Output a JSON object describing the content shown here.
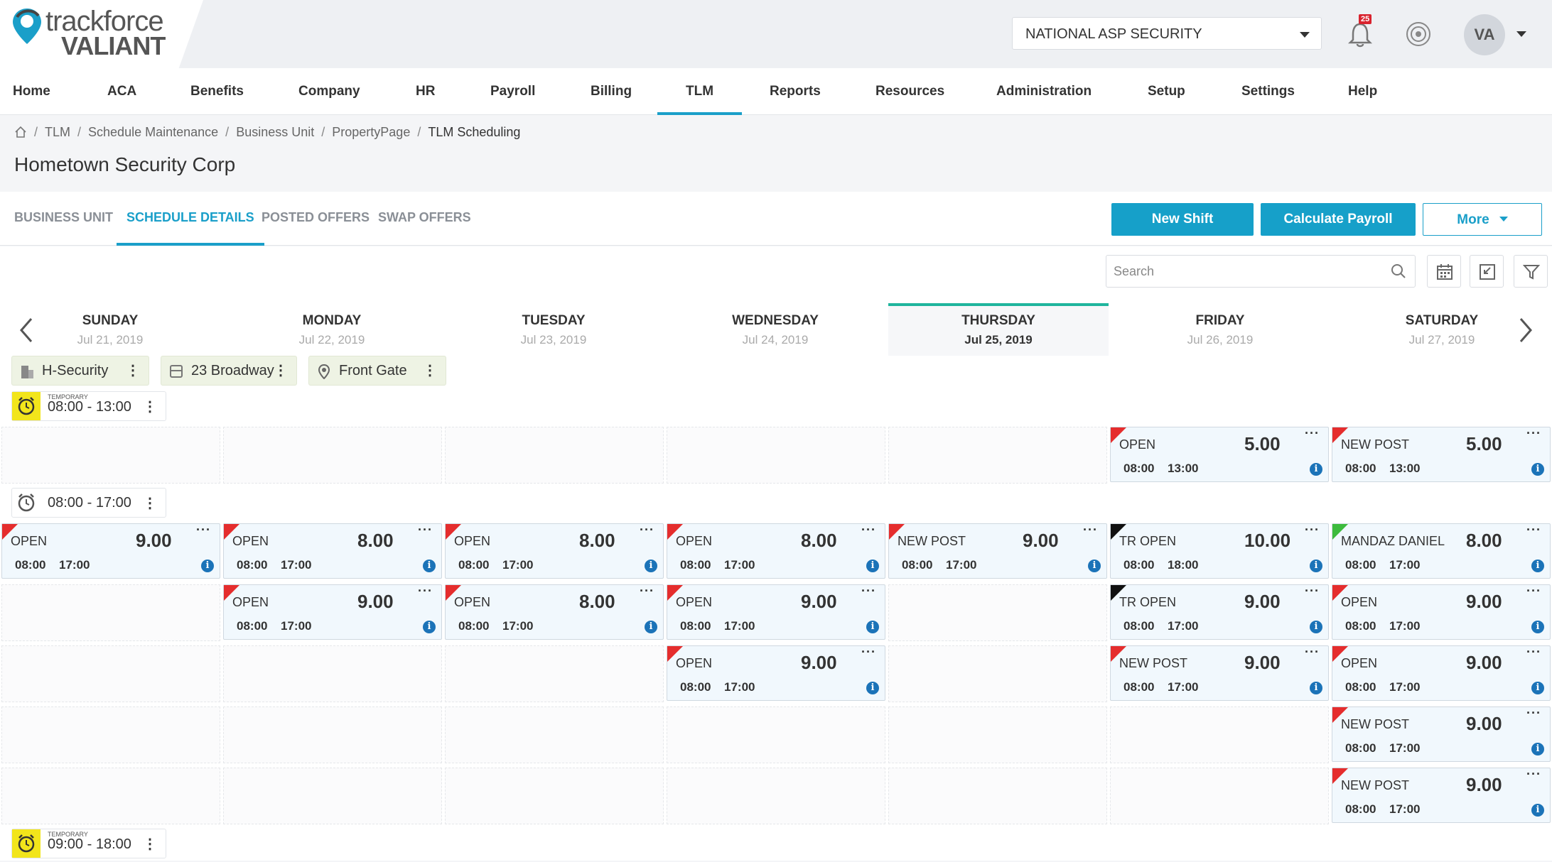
{
  "header": {
    "logo_line1": "trackforce",
    "logo_line2": "VALIANT",
    "company": "NATIONAL ASP SECURITY",
    "notifications": "25",
    "avatar": "VA",
    "accent": "#1a9fc9"
  },
  "nav": [
    "Home",
    "ACA",
    "Benefits",
    "Company",
    "HR",
    "Payroll",
    "Billing",
    "TLM",
    "Reports",
    "Resources",
    "Administration",
    "Setup",
    "Settings",
    "Help"
  ],
  "nav_active": "TLM",
  "breadcrumb": [
    "TLM",
    "Schedule Maintenance",
    "Business Unit",
    "PropertyPage",
    "TLM Scheduling"
  ],
  "page_title": "Hometown Security Corp",
  "tabs": [
    "BUSINESS UNIT",
    "SCHEDULE DETAILS",
    "POSTED OFFERS",
    "SWAP OFFERS"
  ],
  "tab_active": "SCHEDULE DETAILS",
  "actions": {
    "new_shift": "New Shift",
    "calc_payroll": "Calculate Payroll",
    "more": "More"
  },
  "search_placeholder": "Search",
  "days": [
    {
      "name": "SUNDAY",
      "date": "Jul 21, 2019"
    },
    {
      "name": "MONDAY",
      "date": "Jul 22, 2019"
    },
    {
      "name": "TUESDAY",
      "date": "Jul 23, 2019"
    },
    {
      "name": "WEDNESDAY",
      "date": "Jul 24, 2019"
    },
    {
      "name": "THURSDAY",
      "date": "Jul 25, 2019"
    },
    {
      "name": "FRIDAY",
      "date": "Jul 26, 2019"
    },
    {
      "name": "SATURDAY",
      "date": "Jul 27, 2019"
    }
  ],
  "today": "THURSDAY",
  "chips": [
    "H-Security",
    "23 Broadway",
    "Front Gate"
  ],
  "timeslots": [
    {
      "label": "TEMPORARY",
      "time": "08:00 - 13:00",
      "temporary": true
    },
    {
      "label": "",
      "time": "08:00 - 17:00",
      "temporary": false
    },
    {
      "label": "TEMPORARY",
      "time": "09:00 - 18:00",
      "temporary": true
    }
  ],
  "shift_colors": {
    "red": "#e52d2d",
    "black": "#111111",
    "green": "#3dbb3d"
  },
  "shifts_0800_1300": [
    {
      "day": 5,
      "row": 0,
      "name": "OPEN",
      "hours": "5.00",
      "start": "08:00",
      "end": "13:00",
      "flag": "red"
    },
    {
      "day": 6,
      "row": 0,
      "name": "NEW POST",
      "hours": "5.00",
      "start": "08:00",
      "end": "13:00",
      "flag": "red"
    }
  ],
  "shifts_0800_1700": [
    {
      "day": 0,
      "row": 0,
      "name": "OPEN",
      "hours": "9.00",
      "start": "08:00",
      "end": "17:00",
      "flag": "red"
    },
    {
      "day": 1,
      "row": 0,
      "name": "OPEN",
      "hours": "8.00",
      "start": "08:00",
      "end": "17:00",
      "flag": "red"
    },
    {
      "day": 2,
      "row": 0,
      "name": "OPEN",
      "hours": "8.00",
      "start": "08:00",
      "end": "17:00",
      "flag": "red"
    },
    {
      "day": 3,
      "row": 0,
      "name": "OPEN",
      "hours": "8.00",
      "start": "08:00",
      "end": "17:00",
      "flag": "red"
    },
    {
      "day": 4,
      "row": 0,
      "name": "NEW POST",
      "hours": "9.00",
      "start": "08:00",
      "end": "17:00",
      "flag": "red"
    },
    {
      "day": 5,
      "row": 0,
      "name": "TR OPEN",
      "hours": "10.00",
      "start": "08:00",
      "end": "18:00",
      "flag": "black"
    },
    {
      "day": 6,
      "row": 0,
      "name": "MANDAZ DANIEL",
      "hours": "8.00",
      "start": "08:00",
      "end": "17:00",
      "flag": "green"
    },
    {
      "day": 1,
      "row": 1,
      "name": "OPEN",
      "hours": "9.00",
      "start": "08:00",
      "end": "17:00",
      "flag": "red"
    },
    {
      "day": 2,
      "row": 1,
      "name": "OPEN",
      "hours": "8.00",
      "start": "08:00",
      "end": "17:00",
      "flag": "red"
    },
    {
      "day": 3,
      "row": 1,
      "name": "OPEN",
      "hours": "9.00",
      "start": "08:00",
      "end": "17:00",
      "flag": "red"
    },
    {
      "day": 5,
      "row": 1,
      "name": "TR OPEN",
      "hours": "9.00",
      "start": "08:00",
      "end": "17:00",
      "flag": "black"
    },
    {
      "day": 6,
      "row": 1,
      "name": "OPEN",
      "hours": "9.00",
      "start": "08:00",
      "end": "17:00",
      "flag": "red"
    },
    {
      "day": 3,
      "row": 2,
      "name": "OPEN",
      "hours": "9.00",
      "start": "08:00",
      "end": "17:00",
      "flag": "red"
    },
    {
      "day": 5,
      "row": 2,
      "name": "NEW POST",
      "hours": "9.00",
      "start": "08:00",
      "end": "17:00",
      "flag": "red"
    },
    {
      "day": 6,
      "row": 2,
      "name": "OPEN",
      "hours": "9.00",
      "start": "08:00",
      "end": "17:00",
      "flag": "red"
    },
    {
      "day": 6,
      "row": 3,
      "name": "NEW POST",
      "hours": "9.00",
      "start": "08:00",
      "end": "17:00",
      "flag": "red"
    },
    {
      "day": 6,
      "row": 4,
      "name": "NEW POST",
      "hours": "9.00",
      "start": "08:00",
      "end": "17:00",
      "flag": "red"
    }
  ]
}
